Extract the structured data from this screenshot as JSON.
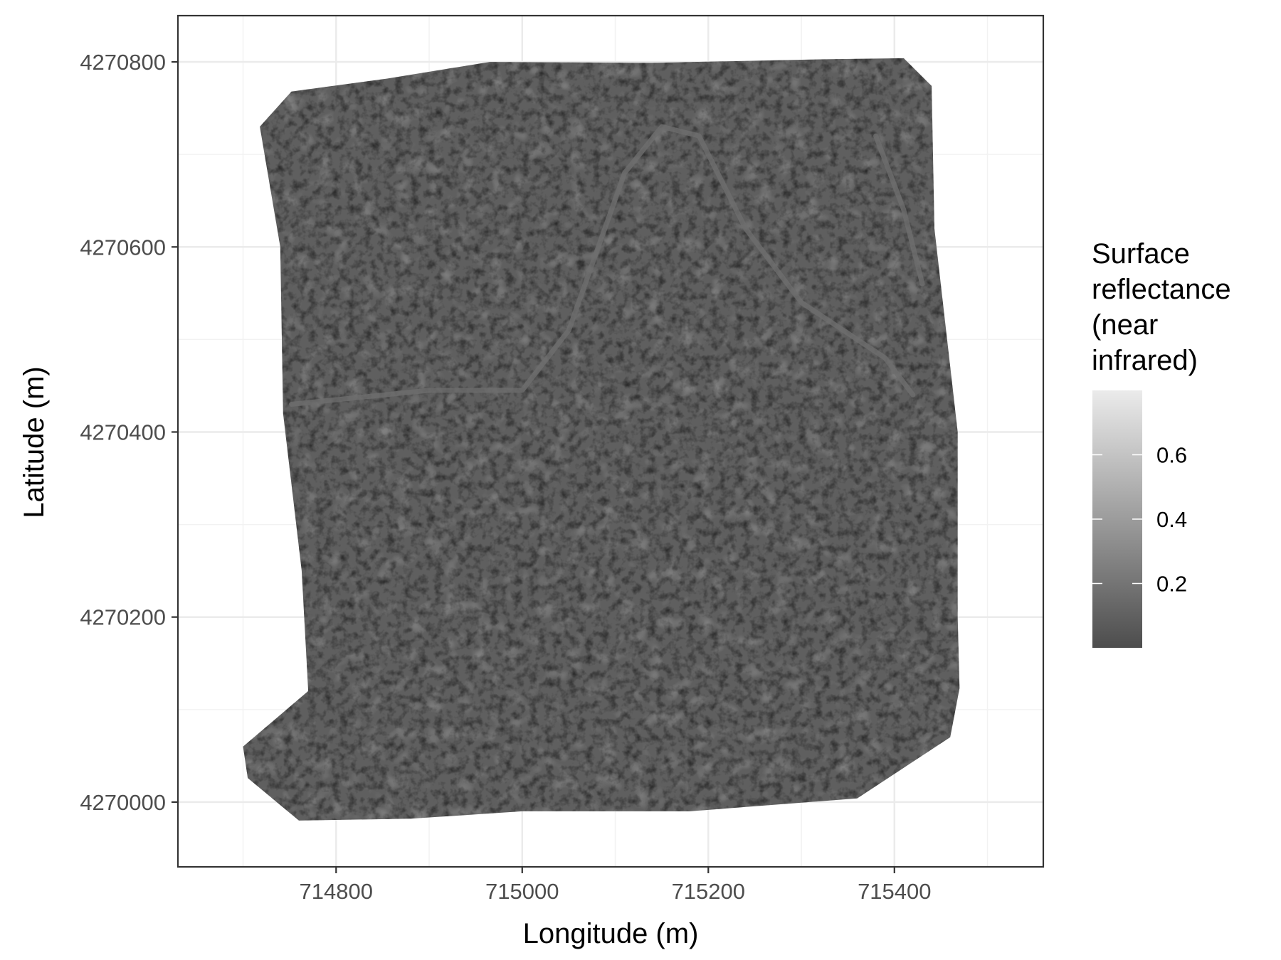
{
  "chart_data": {
    "type": "heatmap",
    "description_kind": "raster map",
    "x_axis": {
      "label": "Longitude (m)",
      "ticks": [
        714800,
        715000,
        715200,
        715400
      ],
      "tick_labels": [
        "714800",
        "715000",
        "715200",
        "715400"
      ],
      "range": [
        714630,
        715560
      ]
    },
    "y_axis": {
      "label": "Latitude (m)",
      "ticks": [
        4270000,
        4270200,
        4270400,
        4270600,
        4270800
      ],
      "tick_labels": [
        "4270000",
        "4270200",
        "4270400",
        "4270600",
        "4270800"
      ],
      "range": [
        4269930,
        4270850
      ]
    },
    "grid": true,
    "legend": {
      "title_lines": [
        "Surface",
        "reflectance",
        "(near",
        "infrared)"
      ],
      "ticks": [
        0.2,
        0.4,
        0.6
      ],
      "tick_labels": [
        "0.2",
        "0.4",
        "0.6"
      ],
      "range": [
        0.0,
        0.8
      ],
      "placement": "right",
      "color_low": "#4d4d4d",
      "color_high": "#ebebeb"
    },
    "raster_footprint": [
      [
        714718,
        4270730
      ],
      [
        714752,
        4270768
      ],
      [
        714855,
        4270782
      ],
      [
        714965,
        4270800
      ],
      [
        715140,
        4270799
      ],
      [
        715330,
        4270803
      ],
      [
        715410,
        4270804
      ],
      [
        715440,
        4270774
      ],
      [
        715443,
        4270620
      ],
      [
        715468,
        4270400
      ],
      [
        715468,
        4270200
      ],
      [
        715470,
        4270123
      ],
      [
        715460,
        4270070
      ],
      [
        715360,
        4270004
      ],
      [
        715180,
        4269990
      ],
      [
        715000,
        4269990
      ],
      [
        714880,
        4269982
      ],
      [
        714760,
        4269980
      ],
      [
        714705,
        4270026
      ],
      [
        714700,
        4270060
      ],
      [
        714770,
        4270120
      ],
      [
        714763,
        4270250
      ],
      [
        714743,
        4270420
      ],
      [
        714740,
        4270600
      ]
    ],
    "mean_reflectance": 0.12,
    "features": [
      {
        "kind": "track",
        "points": [
          [
            714752,
            4270430
          ],
          [
            714900,
            4270445
          ],
          [
            715000,
            4270445
          ],
          [
            715050,
            4270510
          ],
          [
            715110,
            4270680
          ],
          [
            715150,
            4270730
          ],
          [
            715190,
            4270720
          ],
          [
            715240,
            4270620
          ],
          [
            715300,
            4270540
          ],
          [
            715390,
            4270480
          ],
          [
            715420,
            4270440
          ]
        ]
      },
      {
        "kind": "track",
        "points": [
          [
            715380,
            4270720
          ],
          [
            715410,
            4270640
          ],
          [
            715430,
            4270560
          ]
        ]
      }
    ]
  }
}
